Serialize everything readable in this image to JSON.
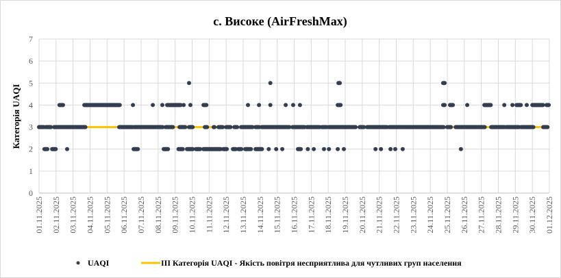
{
  "chart_data": {
    "type": "scatter",
    "title": "с. Високе (AirFreshMax)",
    "xlabel": "",
    "ylabel": "Категорія UAQI",
    "ylim": [
      0,
      7
    ],
    "yticks": [
      "0",
      "1",
      "2",
      "3",
      "4",
      "5",
      "6",
      "7"
    ],
    "xticks": [
      "01.11.2025",
      "02.11.2025",
      "03.11.2025",
      "04.11.2025",
      "05.11.2025",
      "06.11.2025",
      "07.11.2025",
      "08.11.2025",
      "09.11.2025",
      "10.11.2025",
      "11.11.2025",
      "12.11.2025",
      "13.11.2025",
      "14.11.2025",
      "15.11.2025",
      "16.11.2025",
      "17.11.2025",
      "18.11.2025",
      "19.11.2025",
      "20.11.2025",
      "21.11.2025",
      "22.11.2025",
      "23.11.2025",
      "24.11.2025",
      "25.11.2025",
      "26.11.2025",
      "27.11.2025",
      "28.11.2025",
      "29.11.2025",
      "30.11.2025",
      "01.12.2025"
    ],
    "grid": true,
    "legend_position": "bottom",
    "threshold": {
      "name": "ІІІ Категорія UAQI - Якість повітря несприятлива  для чутливих  груп  населення",
      "value": 3,
      "color": "#FFC000"
    },
    "series": [
      {
        "name": "UAQI",
        "color": "#333F50",
        "sampling": "hourly, x in days from 01.11.2025",
        "runs": [
          [
            0,
            0.32,
            3
          ],
          [
            0.4,
            0.72,
            3
          ],
          [
            0.89,
            2.74,
            3
          ],
          [
            4.71,
            5.52,
            3
          ],
          [
            5.6,
            7.29,
            3
          ],
          [
            7.45,
            7.9,
            3
          ],
          [
            8.26,
            8.62,
            3
          ],
          [
            8.82,
            9.06,
            3
          ],
          [
            9.75,
            9.9,
            3
          ],
          [
            10.27,
            10.35,
            3
          ],
          [
            10.55,
            10.8,
            3
          ],
          [
            11.0,
            11.28,
            3
          ],
          [
            11.48,
            11.68,
            3
          ],
          [
            11.88,
            12.56,
            3
          ],
          [
            12.73,
            12.97,
            3
          ],
          [
            13.09,
            14.74,
            3
          ],
          [
            14.9,
            15.63,
            3
          ],
          [
            15.75,
            16.5,
            3
          ],
          [
            16.63,
            16.95,
            3
          ],
          [
            17.04,
            18.32,
            3
          ],
          [
            18.36,
            18.64,
            3
          ],
          [
            18.85,
            19.13,
            3
          ],
          [
            19.29,
            20.46,
            3
          ],
          [
            20.58,
            23.8,
            3
          ],
          [
            24.0,
            24.24,
            3
          ],
          [
            24.49,
            26.22,
            3
          ],
          [
            26.58,
            27.39,
            3
          ],
          [
            27.47,
            28.23,
            3
          ],
          [
            28.35,
            29.08,
            3
          ],
          [
            29.64,
            29.92,
            3
          ],
          [
            1.2,
            1.43,
            4
          ],
          [
            2.66,
            4.75,
            4
          ],
          [
            5.52,
            5.52,
            4
          ],
          [
            6.69,
            6.69,
            4
          ],
          [
            7.25,
            7.25,
            4
          ],
          [
            7.53,
            8.34,
            4
          ],
          [
            8.5,
            8.5,
            4
          ],
          [
            8.9,
            8.9,
            4
          ],
          [
            9.67,
            9.87,
            4
          ],
          [
            12.28,
            12.28,
            4
          ],
          [
            12.93,
            12.93,
            4
          ],
          [
            13.6,
            13.6,
            4
          ],
          [
            14.5,
            14.5,
            4
          ],
          [
            14.94,
            14.94,
            4
          ],
          [
            15.34,
            15.34,
            4
          ],
          [
            17.56,
            17.76,
            4
          ],
          [
            23.76,
            23.88,
            4
          ],
          [
            24.16,
            24.33,
            4
          ],
          [
            25.17,
            25.17,
            4
          ],
          [
            26.18,
            26.58,
            4
          ],
          [
            27.35,
            27.35,
            4
          ],
          [
            27.83,
            27.83,
            4
          ],
          [
            28.07,
            28.35,
            4
          ],
          [
            28.67,
            28.67,
            4
          ],
          [
            29.0,
            29.64,
            4
          ],
          [
            29.84,
            30.0,
            4
          ],
          [
            8.82,
            8.82,
            5
          ],
          [
            13.6,
            13.6,
            5
          ],
          [
            17.6,
            17.72,
            5
          ],
          [
            23.76,
            23.88,
            5
          ],
          [
            0.32,
            0.52,
            2
          ],
          [
            0.77,
            1.0,
            2
          ],
          [
            1.65,
            1.65,
            2
          ],
          [
            5.56,
            5.84,
            2
          ],
          [
            7.33,
            7.6,
            2
          ],
          [
            8.2,
            8.45,
            2
          ],
          [
            8.7,
            9.06,
            2
          ],
          [
            9.22,
            9.5,
            2
          ],
          [
            9.67,
            10.67,
            2
          ],
          [
            10.83,
            11.07,
            2
          ],
          [
            11.4,
            11.6,
            2
          ],
          [
            11.72,
            11.92,
            2
          ],
          [
            12.12,
            12.48,
            2
          ],
          [
            12.73,
            13.13,
            2
          ],
          [
            13.5,
            13.5,
            2
          ],
          [
            13.94,
            13.94,
            2
          ],
          [
            14.3,
            14.3,
            2
          ],
          [
            15.22,
            15.42,
            2
          ],
          [
            15.8,
            15.8,
            2
          ],
          [
            16.15,
            16.15,
            2
          ],
          [
            16.75,
            16.75,
            2
          ],
          [
            17.04,
            17.04,
            2
          ],
          [
            17.56,
            17.56,
            2
          ],
          [
            17.92,
            17.92,
            2
          ],
          [
            19.78,
            19.78,
            2
          ],
          [
            20.1,
            20.1,
            2
          ],
          [
            20.66,
            20.66,
            2
          ],
          [
            20.94,
            20.94,
            2
          ],
          [
            21.38,
            21.38,
            2
          ],
          [
            24.8,
            24.8,
            2
          ]
        ]
      }
    ]
  }
}
